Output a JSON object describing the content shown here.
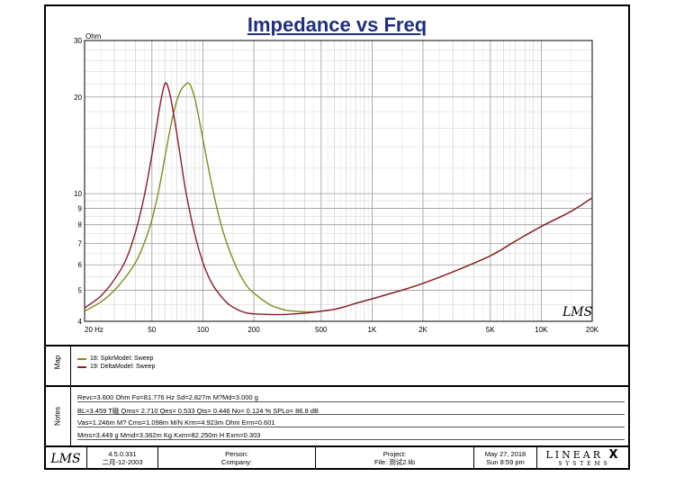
{
  "title": "Impedance vs Freq",
  "chart_data": {
    "type": "line",
    "title": "Impedance vs Freq",
    "xlabel": "",
    "ylabel": "Ohm",
    "xscale": "log",
    "yscale": "log",
    "xlim": [
      20,
      20000
    ],
    "ylim": [
      4,
      30
    ],
    "x_tick_labels": [
      "20 Hz",
      "50",
      "100",
      "200",
      "500",
      "1K",
      "2K",
      "5K",
      "10K",
      "20K"
    ],
    "x_tick_values": [
      20,
      50,
      100,
      200,
      500,
      1000,
      2000,
      5000,
      10000,
      20000
    ],
    "y_tick_labels": [
      "4",
      "5",
      "6",
      "7",
      "8",
      "9",
      "10",
      "20",
      "30"
    ],
    "y_tick_values": [
      4,
      5,
      6,
      7,
      8,
      9,
      10,
      20,
      30
    ],
    "y_unit_label": "Ohm",
    "watermark": "LMS",
    "series": [
      {
        "name": "18: SpkrModel: Sweep",
        "color": "#7d8f1a",
        "x": [
          20,
          25,
          30,
          35,
          40,
          45,
          50,
          55,
          60,
          65,
          70,
          75,
          80,
          82,
          85,
          90,
          95,
          100,
          110,
          120,
          130,
          140,
          160,
          180,
          200,
          250,
          300,
          350,
          400,
          450,
          500,
          600,
          700,
          800,
          1000,
          1500,
          2000,
          3000,
          5000,
          7000,
          10000,
          15000,
          20000
        ],
        "values": [
          4.3,
          4.6,
          5.0,
          5.5,
          6.1,
          7.0,
          8.3,
          10.3,
          13.2,
          16.5,
          19.4,
          21.2,
          22.0,
          22.1,
          21.6,
          19.6,
          17.1,
          14.8,
          11.4,
          9.2,
          7.8,
          6.9,
          5.8,
          5.2,
          4.9,
          4.5,
          4.35,
          4.3,
          4.28,
          4.28,
          4.3,
          4.36,
          4.45,
          4.55,
          4.7,
          5.0,
          5.25,
          5.7,
          6.4,
          7.1,
          7.9,
          8.8,
          9.7
        ]
      },
      {
        "name": "19: DeltaModel: Sweep",
        "color": "#8b1a2b",
        "x": [
          20,
          25,
          30,
          35,
          40,
          45,
          50,
          55,
          58,
          60,
          62,
          65,
          70,
          75,
          80,
          90,
          100,
          110,
          120,
          140,
          160,
          180,
          200,
          250,
          300,
          350,
          400,
          450,
          500,
          600,
          700,
          800,
          1000,
          1500,
          2000,
          3000,
          5000,
          7000,
          10000,
          15000,
          20000
        ],
        "values": [
          4.4,
          4.8,
          5.4,
          6.2,
          7.6,
          9.8,
          13.2,
          18.0,
          20.9,
          22.1,
          21.6,
          19.5,
          15.5,
          12.2,
          9.9,
          7.4,
          6.1,
          5.4,
          5.0,
          4.55,
          4.35,
          4.25,
          4.22,
          4.2,
          4.2,
          4.22,
          4.24,
          4.27,
          4.3,
          4.36,
          4.45,
          4.55,
          4.7,
          5.0,
          5.25,
          5.7,
          6.4,
          7.1,
          7.9,
          8.8,
          9.7
        ]
      }
    ]
  },
  "sections": {
    "map_label": "Map",
    "notes_label": "Notes"
  },
  "legend": [
    {
      "label": "18: SpkrModel: Sweep",
      "color": "#7d8f1a"
    },
    {
      "label": "19: DeltaModel: Sweep",
      "color": "#8b1a2b"
    }
  ],
  "notes": [
    "Revc=3.600 Ohm  Fo=81.776 Hz  Sd=2.827m M?Md=3.000 g",
    "BL=3.459 T磁  Qms= 2.710  Qes= 0.533  Qts= 0.446  No= 0.124 %  SPLo= 86.9 dB",
    "Vas=1.246m M? Cms=1.098m M/N  Krm=4.923m Ohm  Erm=0.601",
    "Mms=3.449 g  Mmd=3.362m Kg  Kxm=82.250m H  Exm=0.303"
  ],
  "footer": {
    "logo": "LMS",
    "version": "4.5.0.331",
    "date_built": "二月-12-2003",
    "person_label": "Person:",
    "company_label": "Company:",
    "project_label": "Project:",
    "file_label": "File: 测试2.lib",
    "date": "May 27, 2018",
    "time": "Sun  8:59 pm",
    "brand_top": "LINEAR",
    "brand_x": "X",
    "brand_bottom": "S Y S T E M S"
  }
}
